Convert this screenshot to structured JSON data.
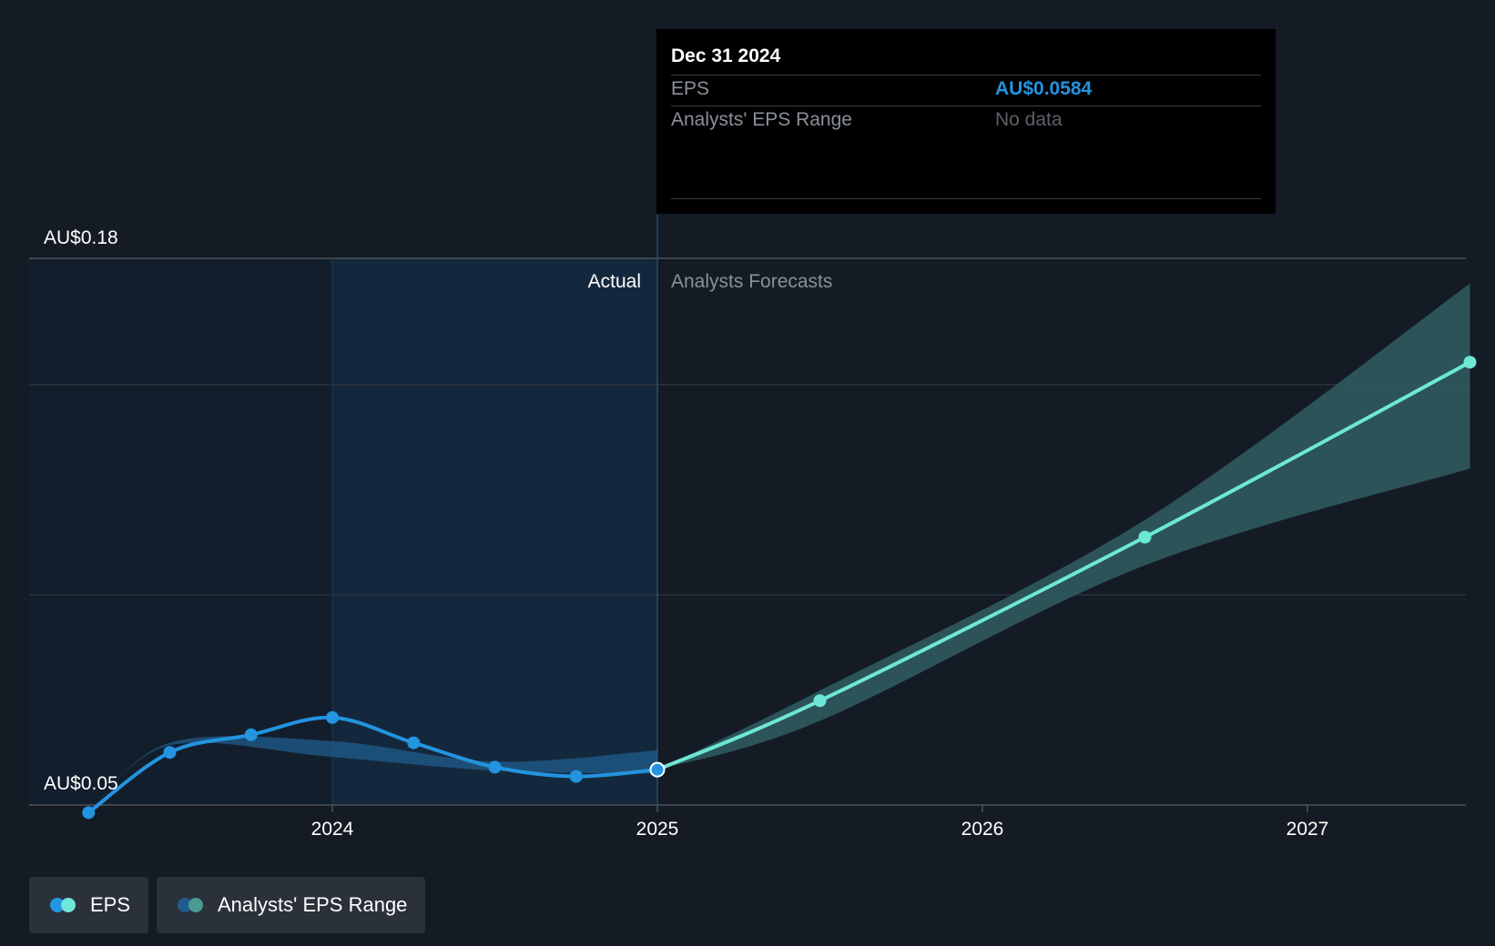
{
  "chart_data": {
    "type": "line",
    "y_axis": {
      "top_label": "AU$0.18",
      "bottom_label": "AU$0.05",
      "ylim": [
        0.05,
        0.18
      ]
    },
    "x_axis": {
      "ticks": [
        "2024",
        "2025",
        "2026",
        "2027"
      ],
      "tick_values": [
        2024.0,
        2025.0,
        2026.0,
        2027.0
      ]
    },
    "section_labels": {
      "actual": "Actual",
      "forecast": "Analysts Forecasts"
    },
    "series": [
      {
        "name": "EPS",
        "kind": "actual",
        "color": "#2394df",
        "x": [
          2023.25,
          2023.5,
          2023.75,
          2024.0,
          2024.25,
          2024.5,
          2024.75,
          2025.0
        ],
        "y": [
          0.0482,
          0.0625,
          0.0667,
          0.0708,
          0.0648,
          0.059,
          0.0568,
          0.0584
        ]
      },
      {
        "name": "EPS",
        "kind": "forecast",
        "color": "#6ee7d6",
        "x": [
          2025.0,
          2025.5,
          2026.5,
          2027.5
        ],
        "y": [
          0.0584,
          0.0748,
          0.1137,
          0.1553
        ]
      }
    ],
    "ranges": [
      {
        "name": "Analysts' EPS Range",
        "kind": "past",
        "color": "#1f5c8c",
        "x": [
          2023.25,
          2023.5,
          2024.0,
          2024.5,
          2025.0
        ],
        "low": [
          0.0482,
          0.0642,
          0.0614,
          0.0582,
          0.0574
        ],
        "high": [
          0.0482,
          0.0648,
          0.0652,
          0.0603,
          0.063
        ]
      },
      {
        "name": "Analysts' EPS Range",
        "kind": "forecast",
        "color": "#2f5a5e",
        "x": [
          2025.0,
          2025.5,
          2026.5,
          2027.5
        ],
        "low": [
          0.0584,
          0.07,
          0.107,
          0.13
        ],
        "high": [
          0.0584,
          0.0772,
          0.1178,
          0.174
        ]
      }
    ],
    "highlight": {
      "x": 2025.0,
      "y": 0.0584
    },
    "grid": true
  },
  "tooltip": {
    "date": "Dec 31 2024",
    "rows": [
      {
        "label": "EPS",
        "value": "AU$0.0584",
        "value_color": "#2394df"
      },
      {
        "label": "Analysts' EPS Range",
        "value": "No data",
        "value_color": "#5c6169"
      }
    ]
  },
  "legend": [
    {
      "label": "EPS",
      "colors": [
        "#2394df",
        "#6ee7d6"
      ]
    },
    {
      "label": "Analysts' EPS Range",
      "colors": [
        "#1f5c8c",
        "#4a9a94"
      ]
    }
  ]
}
